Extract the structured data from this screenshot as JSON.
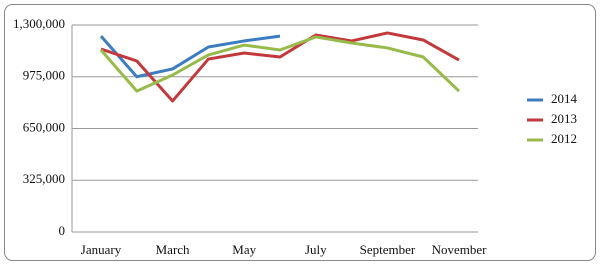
{
  "chart_data": {
    "type": "line",
    "categories": [
      "January",
      null,
      "March",
      null,
      "May",
      null,
      "July",
      null,
      "September",
      null,
      "November"
    ],
    "series": [
      {
        "name": "2014",
        "color": "#3b7dc0",
        "values": [
          1230000,
          975000,
          1024000,
          1162000,
          1200000,
          1230000,
          null,
          null,
          null,
          null,
          null
        ]
      },
      {
        "name": "2013",
        "color": "#c2383b",
        "values": [
          1149000,
          1074000,
          823000,
          1086000,
          1124000,
          1099000,
          1237000,
          1200000,
          1250000,
          1206000,
          1080000
        ]
      },
      {
        "name": "2012",
        "color": "#98ba4a",
        "values": [
          1143000,
          885000,
          986000,
          1112000,
          1174000,
          1143000,
          1225000,
          1187000,
          1156000,
          1099000,
          885000
        ]
      }
    ],
    "ylim": [
      0,
      1300000
    ],
    "yticks": [
      0,
      {
        "value": 325000,
        "label": "325,000"
      },
      {
        "value": 650000,
        "label": "650,000"
      },
      {
        "value": 975000,
        "label": "975,000"
      },
      {
        "value": 1300000,
        "label": "1,300,000"
      }
    ],
    "grid": true,
    "legend": "right"
  }
}
